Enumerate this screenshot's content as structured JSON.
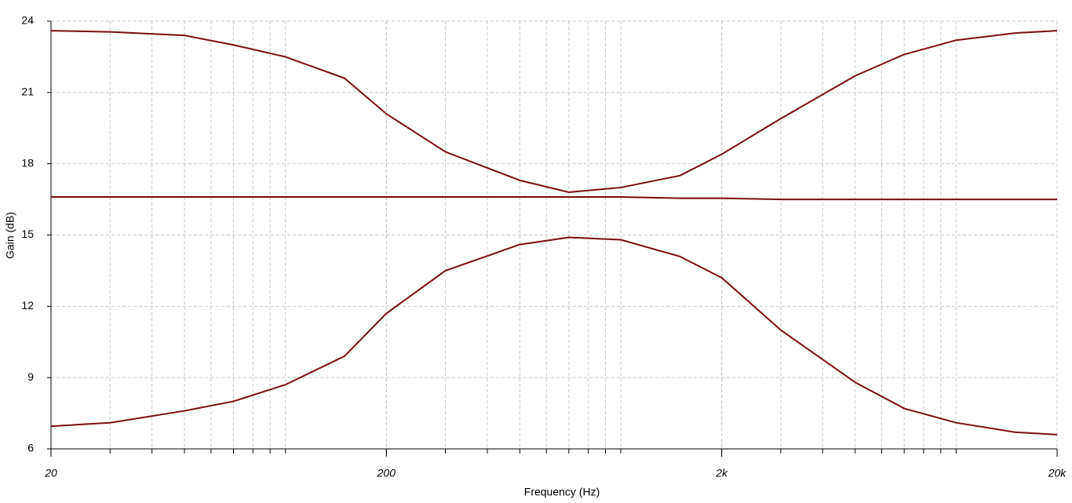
{
  "chart_data": {
    "type": "line",
    "xlabel": "Frequency (Hz)",
    "ylabel": "Gain (dB)",
    "x": [
      20,
      30,
      50,
      70,
      100,
      150,
      200,
      300,
      500,
      700,
      1000,
      1500,
      2000,
      3000,
      5000,
      7000,
      10000,
      15000,
      20000
    ],
    "series": [
      {
        "color": "#7b0c0c",
        "values": [
          23.6,
          23.55,
          23.4,
          23.0,
          22.5,
          21.6,
          20.1,
          18.5,
          17.3,
          16.8,
          17.0,
          17.5,
          18.4,
          19.9,
          21.7,
          22.6,
          23.2,
          23.5,
          23.6
        ]
      },
      {
        "color": "#7b0c0c",
        "values": [
          16.6,
          16.6,
          16.6,
          16.6,
          16.6,
          16.6,
          16.6,
          16.6,
          16.6,
          16.6,
          16.6,
          16.55,
          16.55,
          16.5,
          16.5,
          16.5,
          16.5,
          16.5,
          16.5
        ]
      },
      {
        "color": "#7b0c0c",
        "values": [
          6.95,
          7.1,
          7.6,
          8.0,
          8.7,
          9.9,
          11.7,
          13.5,
          14.6,
          14.9,
          14.8,
          14.1,
          13.2,
          11.0,
          8.8,
          7.7,
          7.1,
          6.7,
          6.6
        ]
      }
    ],
    "xscale": "log",
    "xlim": [
      20,
      20000
    ],
    "xticks": [
      20,
      200,
      {
        "value": 2000,
        "label": "2k"
      },
      {
        "value": 20000,
        "label": "20k"
      }
    ],
    "ylim": [
      6,
      24
    ],
    "yticks": [
      6,
      9,
      12,
      15,
      18,
      21,
      24
    ],
    "grid": true
  }
}
